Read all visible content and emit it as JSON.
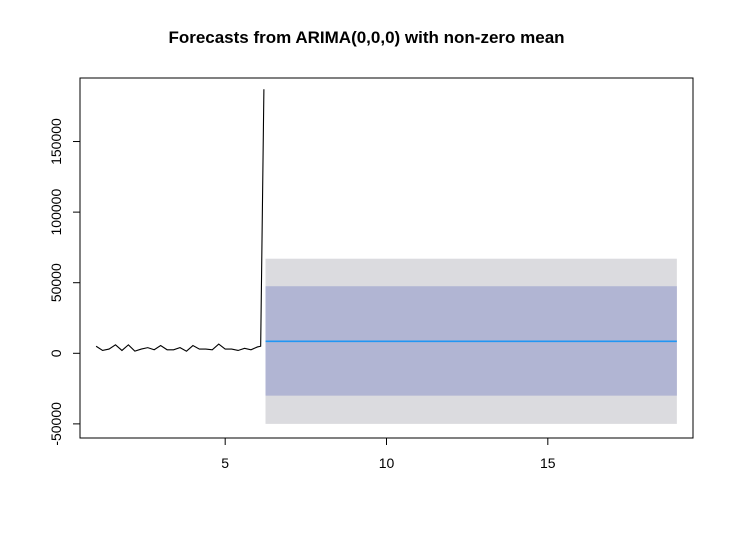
{
  "chart_data": {
    "type": "line",
    "title": "Forecasts from ARIMA(0,0,0) with non-zero mean",
    "xlabel": "",
    "ylabel": "",
    "xlim": [
      0.5,
      19.5
    ],
    "ylim": [
      -60000,
      195000
    ],
    "x_ticks": [
      5,
      10,
      15
    ],
    "y_ticks": [
      -50000,
      0,
      50000,
      100000,
      150000
    ],
    "x_tick_labels": [
      "5",
      "10",
      "15"
    ],
    "y_tick_labels": [
      "-50000",
      "0",
      "50000",
      "100000",
      "150000"
    ],
    "grid": false,
    "series": [
      {
        "role": "history",
        "color": "#000000",
        "x": [
          1.0,
          1.2,
          1.4,
          1.6,
          1.8,
          2.0,
          2.2,
          2.4,
          2.6,
          2.8,
          3.0,
          3.2,
          3.4,
          3.6,
          3.8,
          4.0,
          4.2,
          4.4,
          4.6,
          4.8,
          5.0,
          5.2,
          5.4,
          5.6,
          5.8,
          6.0,
          6.1,
          6.2
        ],
        "y": [
          5000,
          2000,
          3000,
          6000,
          2000,
          6000,
          1500,
          3000,
          4000,
          2500,
          5500,
          2500,
          2500,
          4000,
          1500,
          5500,
          3000,
          3000,
          2500,
          6500,
          3000,
          3000,
          2000,
          3500,
          2500,
          4500,
          5000,
          187000
        ]
      },
      {
        "role": "point-forecast",
        "color": "#2196f3",
        "x": [
          6.25,
          19.0
        ],
        "y": [
          8500,
          8500
        ]
      }
    ],
    "intervals": [
      {
        "level": "95%",
        "color": "#dbdbdf",
        "x": [
          6.25,
          19.0
        ],
        "lower": -50000,
        "upper": 67000
      },
      {
        "level": "80%",
        "color": "#b1b5d3",
        "x": [
          6.25,
          19.0
        ],
        "lower": -30000,
        "upper": 47500
      }
    ],
    "colors": {
      "history": "#000000",
      "forecast": "#2196f3",
      "band95": "#dbdbdf",
      "band80": "#b1b5d3"
    }
  }
}
